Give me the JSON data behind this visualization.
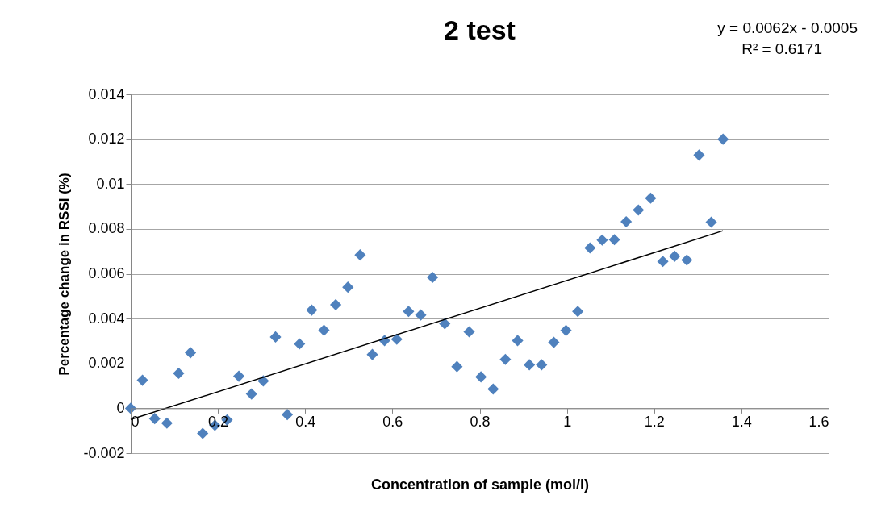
{
  "chart_data": {
    "type": "scatter",
    "title": "2 test",
    "xlabel": "Concentration of sample (mol/l)",
    "ylabel": "Percentage change in RSSI (%)",
    "annotations": [
      "y = 0.0062x - 0.0005",
      "R² = 0.6171"
    ],
    "xlim": [
      0,
      1.6
    ],
    "xticks": [
      0,
      0.2,
      0.4,
      0.6,
      0.8,
      1,
      1.2,
      1.4,
      1.6
    ],
    "ylim": [
      -0.002,
      0.014
    ],
    "yticks": [
      -0.002,
      0,
      0.002,
      0.004,
      0.006,
      0.008,
      0.01,
      0.012,
      0.014
    ],
    "grid": "y",
    "series": [
      {
        "color": "#4f81bd",
        "marker": "diamond",
        "x": [
          0,
          0.027,
          0.055,
          0.083,
          0.11,
          0.137,
          0.165,
          0.193,
          0.221,
          0.248,
          0.277,
          0.304,
          0.332,
          0.359,
          0.387,
          0.415,
          0.443,
          0.47,
          0.498,
          0.526,
          0.554,
          0.582,
          0.61,
          0.637,
          0.665,
          0.692,
          0.72,
          0.748,
          0.776,
          0.803,
          0.831,
          0.859,
          0.887,
          0.914,
          0.942,
          0.97,
          0.998,
          1.025,
          1.053,
          1.081,
          1.109,
          1.136,
          1.164,
          1.192,
          1.22,
          1.247,
          1.275,
          1.303,
          1.331,
          1.358
        ],
        "values": [
          0,
          0.00125,
          -0.00046,
          -0.00066,
          0.00156,
          0.00248,
          -0.00112,
          -0.00076,
          -0.00052,
          0.00143,
          0.00064,
          0.00122,
          0.00318,
          -0.00028,
          0.00287,
          0.00438,
          0.00348,
          0.00462,
          0.0054,
          0.00684,
          0.0024,
          0.00302,
          0.00308,
          0.00432,
          0.00416,
          0.00584,
          0.00377,
          0.00186,
          0.00341,
          0.0014,
          0.00086,
          0.00218,
          0.00302,
          0.00194,
          0.00194,
          0.00294,
          0.00347,
          0.00432,
          0.00715,
          0.0075,
          0.00752,
          0.00832,
          0.00884,
          0.00937,
          0.00655,
          0.00678,
          0.00661,
          0.01129,
          0.0083,
          0.012
        ]
      },
      {
        "type": "line",
        "color": "#000000",
        "x": [
          0,
          1.358
        ],
        "values": [
          -0.0005,
          0.00792
        ]
      }
    ]
  }
}
